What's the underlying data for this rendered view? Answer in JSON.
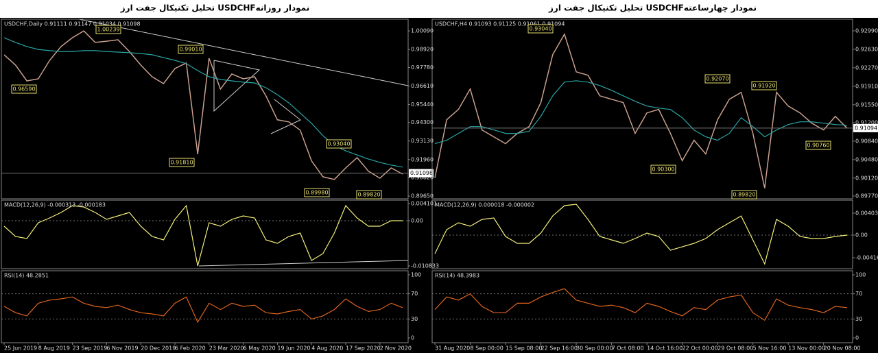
{
  "chart_data": [
    {
      "type": "line",
      "title": "تحلیل تکنیکال جفت ارز  USDCHFنمودار روزانه",
      "subtitle": "USDCHF,Daily  0.91111 0.91147 0.91034 0.91098",
      "categories": [
        "25 Jun 2019",
        null,
        null,
        "8 Aug 2019",
        null,
        null,
        "23 Sep 2019",
        null,
        null,
        "6 Nov 2019",
        null,
        null,
        "20 Dec 2019",
        null,
        null,
        "6 Feb 2020",
        null,
        null,
        "23 Mar 2020",
        null,
        null,
        "6 May 2020",
        null,
        null,
        "19 Jun 2020",
        null,
        null,
        "4 Aug 2020",
        null,
        null,
        "17 Sep 2020",
        null,
        null,
        "2 Nov 2020",
        null,
        null
      ],
      "series": [
        {
          "color": "#c9a08e",
          "values": [
            0.9858,
            0.9793,
            0.9693,
            0.9706,
            0.9823,
            0.991,
            0.9966,
            1.0009,
            0.9936,
            0.9944,
            0.9953,
            0.9879,
            0.9793,
            0.9719,
            0.9676,
            0.9771,
            0.9806,
            0.923,
            0.9836,
            0.9641,
            0.9737,
            0.9706,
            0.9719,
            0.9598,
            0.9447,
            0.9434,
            0.9382,
            0.9187,
            0.9087,
            0.907,
            0.9143,
            0.9208,
            0.9122,
            0.9078,
            0.9143,
            0.9104
          ]
        },
        {
          "color": "#2aa6a6",
          "values": [
            0.9966,
            0.9936,
            0.991,
            0.9892,
            0.9884,
            0.9879,
            0.9879,
            0.9884,
            0.9884,
            0.9879,
            0.9875,
            0.9871,
            0.9866,
            0.9858,
            0.984,
            0.9823,
            0.9802,
            0.9758,
            0.9719,
            0.9702,
            0.9693,
            0.9685,
            0.968,
            0.965,
            0.9606,
            0.9554,
            0.949,
            0.9425,
            0.9347,
            0.9286,
            0.9251,
            0.9225,
            0.9199,
            0.9178,
            0.9161,
            0.9148
          ]
        }
      ],
      "ylim": [
        0.8948,
        1.0083
      ],
      "yticks": [
        {
          "value": 1.0009,
          "label": "1.00090"
        },
        {
          "value": 0.9892,
          "label": "0.98920"
        },
        {
          "value": 0.9778,
          "label": "0.97780"
        },
        {
          "value": 0.9661,
          "label": "0.96610"
        },
        {
          "value": 0.9544,
          "label": "0.95440"
        },
        {
          "value": 0.943,
          "label": "0.94300"
        },
        {
          "value": 0.9313,
          "label": "0.93130"
        },
        {
          "value": 0.9196,
          "label": "0.91960"
        },
        {
          "value": 0.9082,
          "label": "0.90820"
        },
        {
          "value": 0.8965,
          "label": "0.89650"
        }
      ],
      "last_price": 0.91098,
      "annotations": [
        "1.00239",
        "0.99010",
        "0.96590",
        "0.91810",
        "0.93040",
        "0.89980",
        "0.89820"
      ],
      "macd": {
        "label": "MACD(12,26,9) -0.000313 -0.000183",
        "ylim": [
          -0.01149,
          0.00492
        ],
        "yticks": [
          0.004101,
          {
            "value": 0,
            "label": "0.00"
          },
          -0.010833
        ],
        "series": [
          {
            "color": "#f4f07a",
            "values": [
              -0.00132,
              -0.00378,
              -0.00427,
              -0.0005,
              0.00065,
              0.00197,
              0.00361,
              0.00328,
              0.00197,
              0.00033,
              0.00115,
              0.00197,
              -0.00132,
              -0.00378,
              -0.0046,
              0.00033,
              0.00361,
              -0.01083,
              -0.0005,
              -0.00132,
              0.00033,
              0.00115,
              0.00065,
              -0.0046,
              -0.00542,
              -0.00378,
              -0.00296,
              -0.00952,
              -0.00788,
              -0.00296,
              0.00361,
              0.00065,
              -0.00132,
              -0.00132,
              0,
              0
            ]
          }
        ]
      },
      "rsi": {
        "label": "RSI(14) 48.2851",
        "ylim": [
          -7.6,
          106.5
        ],
        "yticks": [
          0,
          30,
          70,
          100
        ],
        "series": [
          {
            "color": "#e0641e",
            "values": [
              50,
              40,
              35,
              55,
              60,
              62,
              65,
              55,
              50,
              48,
              52,
              45,
              40,
              38,
              35,
              55,
              65,
              25,
              55,
              45,
              55,
              50,
              52,
              40,
              38,
              42,
              45,
              30,
              35,
              45,
              62,
              50,
              42,
              45,
              55,
              48
            ]
          }
        ]
      }
    },
    {
      "type": "line",
      "title": "تحلیل تکنیکال جفت ارز  USDCHFنمودار چهارساعته",
      "subtitle": "USDCHF,H4  0.91093 0.91125 0.91061 0.91094",
      "categories": [
        "31 Aug 2020",
        null,
        null,
        "8 Sep 00:00",
        null,
        null,
        "15 Sep 08:00",
        null,
        null,
        "22 Sep 16:00",
        null,
        null,
        "30 Sep 00:00",
        null,
        null,
        "7 Oct 08:00",
        null,
        null,
        "14 Oct 16:00",
        null,
        null,
        "22 Oct 00:00",
        null,
        null,
        "29 Oct 08:00",
        null,
        null,
        "5 Nov 16:00",
        null,
        null,
        "13 Nov 00:00",
        null,
        null,
        "20 Nov 08:00",
        null,
        null
      ],
      "series": [
        {
          "color": "#c9a08e",
          "values": [
            0.90124,
            0.91257,
            0.91457,
            0.91857,
            0.91058,
            0.90924,
            0.90791,
            0.90991,
            0.91124,
            0.91591,
            0.92524,
            0.92924,
            0.92191,
            0.92124,
            0.91724,
            0.91657,
            0.91591,
            0.90991,
            0.91391,
            0.91457,
            0.90991,
            0.90458,
            0.90858,
            0.90591,
            0.91257,
            0.91657,
            0.91791,
            0.90991,
            0.89924,
            0.91791,
            0.91524,
            0.91391,
            0.91191,
            0.91058,
            0.91324,
            0.9109
          ]
        },
        {
          "color": "#2aa6a6",
          "values": [
            0.90791,
            0.90858,
            0.90991,
            0.91124,
            0.91124,
            0.91058,
            0.90991,
            0.90991,
            0.91031,
            0.91324,
            0.91724,
            0.91991,
            0.92017,
            0.91991,
            0.91924,
            0.91831,
            0.91724,
            0.91617,
            0.91524,
            0.91484,
            0.91457,
            0.91297,
            0.91058,
            0.90924,
            0.90858,
            0.90991,
            0.91297,
            0.91124,
            0.90924,
            0.91058,
            0.91164,
            0.91217,
            0.91217,
            0.91191,
            0.91164,
            0.91151
          ]
        }
      ],
      "ylim": [
        0.89717,
        0.93217
      ],
      "yticks": [
        {
          "value": 0.9299,
          "label": "0.92990"
        },
        {
          "value": 0.9263,
          "label": "0.92630"
        },
        {
          "value": 0.9227,
          "label": "0.92270"
        },
        {
          "value": 0.9191,
          "label": "0.91910"
        },
        {
          "value": 0.9155,
          "label": "0.91550"
        },
        {
          "value": 0.912,
          "label": "0.91200"
        },
        {
          "value": 0.9084,
          "label": "0.90840"
        },
        {
          "value": 0.9048,
          "label": "0.90480"
        },
        {
          "value": 0.9012,
          "label": "0.90120"
        },
        {
          "value": 0.8977,
          "label": "0.89770"
        }
      ],
      "last_price": 0.91094,
      "annotations": [
        "0.93040",
        "0.92070",
        "0.91920",
        "0.90760",
        "0.90300",
        "0.89820"
      ],
      "macd": {
        "label": "MACD(12,26,9) 0.000018 -0.000002",
        "ylim": [
          -0.00618,
          0.00644
        ],
        "yticks": [
          0.004039,
          {
            "value": 0,
            "label": "0.00"
          },
          -0.00416
        ],
        "series": [
          {
            "color": "#f4f07a",
            "values": [
              -0.00341,
              0.00101,
              0.00227,
              0.00164,
              0.0029,
              0.00316,
              -0.00025,
              -0.00151,
              -0.00151,
              0.00038,
              0.00353,
              0.00543,
              0.00568,
              0.0029,
              -0.00025,
              -0.00088,
              -0.00151,
              -0.00063,
              0.00038,
              -0.00025,
              -0.00278,
              -0.00215,
              -0.00151,
              -0.00063,
              0.00101,
              0.00227,
              0.00353,
              -0.00088,
              -0.0053,
              0.0029,
              0.00164,
              -0.00025,
              -0.00063,
              -0.00063,
              -0.00025,
              0
            ]
          }
        ]
      },
      "rsi": {
        "label": "RSI(14) 48.3983",
        "ylim": [
          -7.6,
          106.5
        ],
        "yticks": [
          0,
          30,
          70,
          100
        ],
        "series": [
          {
            "color": "#e0641e",
            "values": [
              45,
              65,
              60,
              70,
              50,
              40,
              40,
              55,
              55,
              65,
              72,
              78,
              60,
              55,
              50,
              52,
              48,
              40,
              55,
              50,
              42,
              35,
              48,
              45,
              60,
              65,
              68,
              40,
              28,
              62,
              52,
              48,
              45,
              40,
              50,
              48
            ]
          }
        ]
      }
    }
  ]
}
